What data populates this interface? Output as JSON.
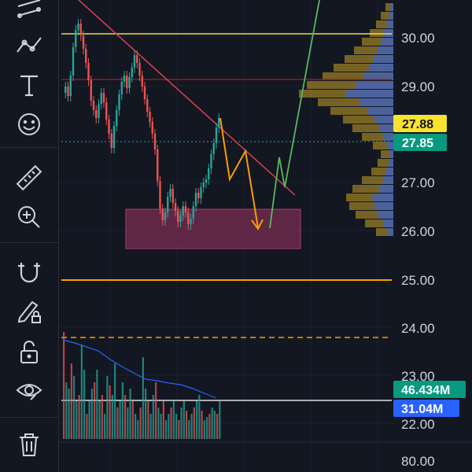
{
  "toolbar": {
    "tools": [
      {
        "name": "lines-tool",
        "icon": "parallel-lines-icon"
      },
      {
        "name": "trend-tool",
        "icon": "zigzag-trend-icon"
      },
      {
        "name": "text-tool",
        "icon": "text-T-icon"
      },
      {
        "name": "emoji-tool",
        "icon": "smiley-icon"
      },
      {
        "name": "measure-tool",
        "icon": "ruler-icon"
      },
      {
        "name": "zoom-tool",
        "icon": "zoom-in-icon"
      },
      {
        "name": "magnet-tool",
        "icon": "magnet-icon"
      },
      {
        "name": "lock-drawing-tool",
        "icon": "pencil-lock-icon"
      },
      {
        "name": "lock-all-tool",
        "icon": "unlock-icon"
      },
      {
        "name": "visibility-tool",
        "icon": "eye-icon"
      },
      {
        "name": "delete-tool",
        "icon": "trash-icon"
      }
    ]
  },
  "price_axis": {
    "ticks": [
      "30.00",
      "29.00",
      "27.00",
      "26.00",
      "25.00",
      "24.00",
      "23.00",
      "22.00",
      "80.00"
    ]
  },
  "badges": {
    "last_price": {
      "value": "27.88",
      "bg": "#f7e330",
      "fg": "#131722"
    },
    "close_price": {
      "value": "27.85",
      "bg": "#089981",
      "fg": "#ffffff"
    },
    "volume_primary": {
      "value": "46.434M",
      "bg": "#089981",
      "fg": "#ffffff"
    },
    "volume_ma": {
      "value": "31.04M",
      "bg": "#2962ff",
      "fg": "#ffffff"
    }
  },
  "colors": {
    "up": "#26a69a",
    "down": "#ef5350",
    "grid": "#1f2430",
    "yellow_line": "#f5d94a",
    "orange_line": "#f59f00",
    "trendline": "#e04050",
    "zone_fill": "#7a2c52",
    "green_projection": "#5cb85c"
  }
}
